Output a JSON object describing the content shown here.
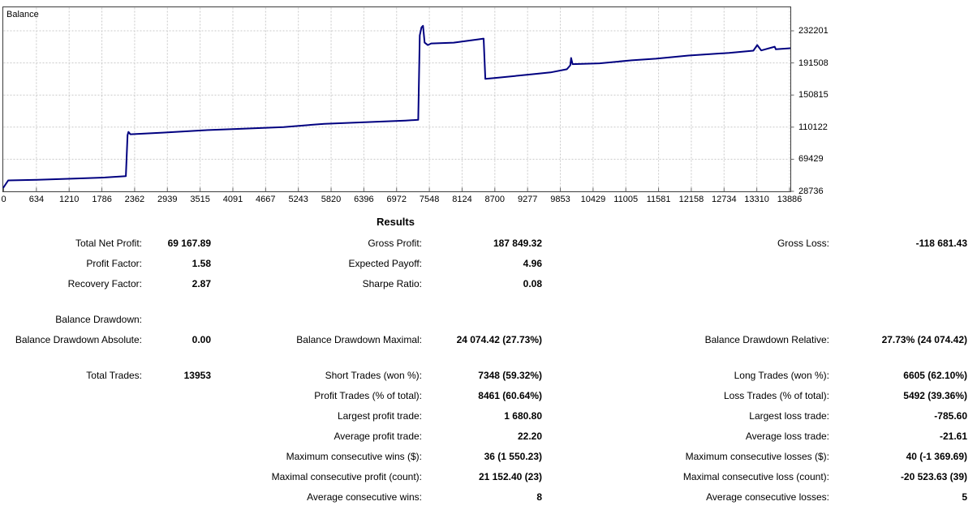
{
  "chart": {
    "line_color": "#000080",
    "grid_color": "#c9c9c9",
    "axis_color": "#3c3c3c",
    "tick_color": "#666666"
  },
  "chart_data": {
    "type": "line",
    "title": "Balance",
    "xlabel": "",
    "ylabel": "",
    "grid": true,
    "legend_position": "top-left-inside",
    "x_range": [
      0,
      13953
    ],
    "y_range": [
      28736,
      262000
    ],
    "x_ticks": [
      0,
      634,
      1210,
      1786,
      2362,
      2939,
      3515,
      4091,
      4667,
      5243,
      5820,
      6396,
      6972,
      7548,
      8124,
      8700,
      9277,
      9853,
      10429,
      11005,
      11581,
      12158,
      12734,
      13310,
      13886
    ],
    "y_ticks": [
      28736,
      69429,
      110122,
      150815,
      191508,
      232201
    ],
    "series": [
      {
        "name": "Balance",
        "points": [
          [
            0,
            34000
          ],
          [
            80,
            42600
          ],
          [
            600,
            43400
          ],
          [
            1200,
            44800
          ],
          [
            1800,
            46300
          ],
          [
            2170,
            48100
          ],
          [
            2200,
            100000
          ],
          [
            2216,
            104100
          ],
          [
            2250,
            101100
          ],
          [
            2820,
            103100
          ],
          [
            3540,
            106100
          ],
          [
            4250,
            108200
          ],
          [
            4970,
            110200
          ],
          [
            5690,
            114300
          ],
          [
            6410,
            116300
          ],
          [
            7130,
            118400
          ],
          [
            7360,
            119400
          ],
          [
            7388,
            226300
          ],
          [
            7418,
            236500
          ],
          [
            7445,
            238600
          ],
          [
            7474,
            217200
          ],
          [
            7530,
            214100
          ],
          [
            7590,
            216200
          ],
          [
            7990,
            217200
          ],
          [
            8420,
            221300
          ],
          [
            8522,
            222300
          ],
          [
            8552,
            171300
          ],
          [
            8710,
            172400
          ],
          [
            9140,
            175400
          ],
          [
            9430,
            177500
          ],
          [
            9710,
            179500
          ],
          [
            10000,
            183500
          ],
          [
            10060,
            188500
          ],
          [
            10075,
            197800
          ],
          [
            10100,
            190000
          ],
          [
            10580,
            191000
          ],
          [
            11150,
            194800
          ],
          [
            11580,
            196800
          ],
          [
            12160,
            200900
          ],
          [
            12880,
            204200
          ],
          [
            13310,
            207000
          ],
          [
            13380,
            214100
          ],
          [
            13450,
            207300
          ],
          [
            13690,
            212100
          ],
          [
            13710,
            208800
          ],
          [
            13953,
            210000
          ]
        ]
      }
    ]
  },
  "results": {
    "title": "Results",
    "rows": [
      {
        "c1": {
          "label": "Total Net Profit:",
          "value": "69 167.89"
        },
        "c2": {
          "label": "Gross Profit:",
          "value": "187 849.32"
        },
        "c3": {
          "label": "Gross Loss:",
          "value": "-118 681.43"
        }
      },
      {
        "c1": {
          "label": "Profit Factor:",
          "value": "1.58"
        },
        "c2": {
          "label": "Expected Payoff:",
          "value": "4.96"
        }
      },
      {
        "c1": {
          "label": "Recovery Factor:",
          "value": "2.87"
        },
        "c2": {
          "label": "Sharpe Ratio:",
          "value": "0.08"
        }
      },
      {
        "gap": true,
        "c1": {
          "label": "Balance Drawdown:",
          "value": ""
        }
      },
      {
        "c1": {
          "label": "Balance Drawdown Absolute:",
          "value": "0.00"
        },
        "c2": {
          "label": "Balance Drawdown Maximal:",
          "value": "24 074.42 (27.73%)"
        },
        "c3": {
          "label": "Balance Drawdown Relative:",
          "value": "27.73% (24 074.42)"
        }
      },
      {
        "gap": true,
        "c1": {
          "label": "Total Trades:",
          "value": "13953"
        },
        "c2": {
          "label": "Short Trades (won %):",
          "value": "7348 (59.32%)"
        },
        "c3": {
          "label": "Long Trades (won %):",
          "value": "6605 (62.10%)"
        }
      },
      {
        "c2": {
          "label": "Profit Trades (% of total):",
          "value": "8461 (60.64%)"
        },
        "c3": {
          "label": "Loss Trades (% of total):",
          "value": "5492 (39.36%)"
        }
      },
      {
        "c2": {
          "label": "Largest profit trade:",
          "value": "1 680.80"
        },
        "c3": {
          "label": "Largest loss trade:",
          "value": "-785.60"
        }
      },
      {
        "c2": {
          "label": "Average profit trade:",
          "value": "22.20"
        },
        "c3": {
          "label": "Average loss trade:",
          "value": "-21.61"
        }
      },
      {
        "c2": {
          "label": "Maximum consecutive wins ($):",
          "value": "36 (1 550.23)"
        },
        "c3": {
          "label": "Maximum consecutive losses ($):",
          "value": "40 (-1 369.69)"
        }
      },
      {
        "c2": {
          "label": "Maximal consecutive profit (count):",
          "value": "21 152.40 (23)"
        },
        "c3": {
          "label": "Maximal consecutive loss (count):",
          "value": "-20 523.63 (39)"
        }
      },
      {
        "c2": {
          "label": "Average consecutive wins:",
          "value": "8"
        },
        "c3": {
          "label": "Average consecutive losses:",
          "value": "5"
        }
      }
    ]
  }
}
